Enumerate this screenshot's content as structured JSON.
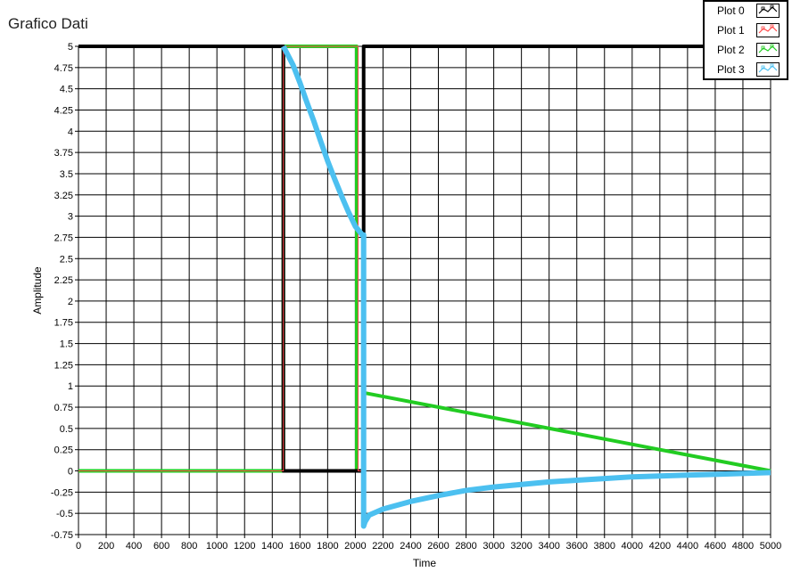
{
  "window": {
    "title": "Grafico Dati"
  },
  "legend": {
    "items": [
      {
        "label": "Plot 0",
        "color": "#000000",
        "icon": "plot0-swatch-icon"
      },
      {
        "label": "Plot 1",
        "color": "#ff4a4a",
        "icon": "plot1-swatch-icon"
      },
      {
        "label": "Plot 2",
        "color": "#22cc22",
        "icon": "plot2-swatch-icon"
      },
      {
        "label": "Plot 3",
        "color": "#4cc0f0",
        "icon": "plot3-swatch-icon"
      }
    ]
  },
  "chart_data": {
    "type": "line",
    "title": "Grafico Dati",
    "xlabel": "Time",
    "ylabel": "Amplitude",
    "xlim": [
      0,
      5000
    ],
    "ylim": [
      -0.75,
      5
    ],
    "grid": true,
    "legend_position": "top-right",
    "x_ticks": [
      "0",
      "200",
      "400",
      "600",
      "800",
      "1000",
      "1200",
      "1400",
      "1600",
      "1800",
      "2000",
      "2200",
      "2400",
      "2600",
      "2800",
      "3000",
      "3200",
      "3400",
      "3600",
      "3800",
      "4000",
      "4200",
      "4400",
      "4600",
      "4800",
      "5000"
    ],
    "y_ticks": [
      "5",
      "4.75",
      "4.5",
      "4.25",
      "4",
      "3.75",
      "3.5",
      "3.25",
      "3",
      "2.75",
      "2.5",
      "2.25",
      "2",
      "1.75",
      "1.5",
      "1.25",
      "1",
      "0.75",
      "0.5",
      "0.25",
      "0",
      "-0.25",
      "-0.5",
      "-0.75"
    ],
    "series": [
      {
        "name": "Plot 0",
        "color": "#000000",
        "x": [
          0,
          1480,
          1480,
          2060,
          2060,
          5000
        ],
        "y": [
          5,
          5,
          0,
          0,
          5,
          5
        ]
      },
      {
        "name": "Plot 1",
        "color": "#ff4a4a",
        "x": [
          0,
          1480,
          1480,
          2020,
          2020,
          2060,
          2060
        ],
        "y": [
          0,
          0,
          5,
          5,
          0,
          0,
          -0.1
        ]
      },
      {
        "name": "Plot 2",
        "color": "#22cc22",
        "x": [
          0,
          1480,
          1480,
          2010,
          2010,
          2060,
          2060,
          5000
        ],
        "y": [
          0,
          0,
          5,
          5,
          0,
          0,
          0.92,
          0
        ]
      },
      {
        "name": "Plot 3",
        "color": "#4cc0f0",
        "x": [
          1480,
          1550,
          1600,
          1650,
          1700,
          1750,
          1800,
          1850,
          1900,
          1950,
          2000,
          2050,
          2060,
          2060,
          2070,
          2100,
          2200,
          2400,
          2600,
          2800,
          3000,
          3200,
          3400,
          3600,
          3800,
          4000,
          4200,
          4400,
          4600,
          4800,
          5000
        ],
        "y": [
          5.0,
          4.78,
          4.57,
          4.34,
          4.12,
          3.88,
          3.65,
          3.44,
          3.24,
          3.05,
          2.88,
          2.78,
          2.78,
          -0.65,
          -0.6,
          -0.52,
          -0.45,
          -0.36,
          -0.29,
          -0.23,
          -0.19,
          -0.16,
          -0.13,
          -0.11,
          -0.09,
          -0.07,
          -0.06,
          -0.05,
          -0.04,
          -0.03,
          -0.02
        ]
      }
    ]
  }
}
